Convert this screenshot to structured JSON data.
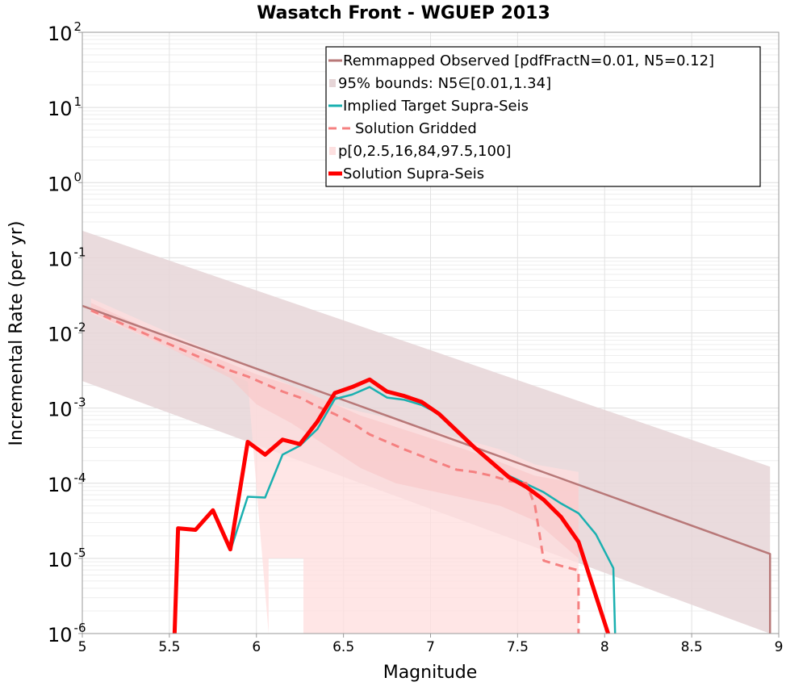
{
  "chart_data": {
    "type": "line",
    "title": "Wasatch Front - WGUEP 2013",
    "xlabel": "Magnitude",
    "ylabel": "Incremental Rate (per yr)",
    "xlim": [
      5,
      9
    ],
    "ylim_log10": [
      -6,
      2
    ],
    "y_scale": "log",
    "x_ticks": [
      5,
      5.5,
      6,
      6.5,
      7,
      7.5,
      8,
      8.5,
      9
    ],
    "x_tick_labels": [
      "5",
      "5.5",
      "6",
      "6.5",
      "7",
      "7.5",
      "8",
      "8.5",
      "9"
    ],
    "y_ticks": [
      {
        "base": "10",
        "exp": "-6",
        "log": -6
      },
      {
        "base": "10",
        "exp": "-5",
        "log": -5
      },
      {
        "base": "10",
        "exp": "-4",
        "log": -4
      },
      {
        "base": "10",
        "exp": "-3",
        "log": -3
      },
      {
        "base": "10",
        "exp": "-2",
        "log": -2
      },
      {
        "base": "10",
        "exp": "-1",
        "log": -1
      },
      {
        "base": "10",
        "exp": "0",
        "log": 0
      },
      {
        "base": "10",
        "exp": "1",
        "log": 1
      },
      {
        "base": "10",
        "exp": "2",
        "log": 2
      }
    ],
    "grid": true,
    "legend_position": "top-right",
    "legend": [
      {
        "label": "Remmapped Observed [pdfFractN=0.01, N5=0.12]",
        "color": "#b87878",
        "style": "line"
      },
      {
        "label": "95% bounds: N5∈[0.01,1.34]",
        "color": "#e6d5d7",
        "style": "patch"
      },
      {
        "label": "Implied Target Supra-Seis",
        "color": "#1ab0b0",
        "style": "line"
      },
      {
        "label": "Solution Gridded",
        "color": "#f58080",
        "style": "dashed"
      },
      {
        "label": "p[0,2.5,16,84,97.5,100]",
        "color": "#fde0e0",
        "style": "patch"
      },
      {
        "label": "Solution Supra-Seis",
        "color": "#ff0000",
        "style": "thick"
      }
    ],
    "series": [
      {
        "name": "Remmapped Observed [pdfFractN=0.01, N5=0.12]",
        "color": "#b87878",
        "x": [
          5.0,
          8.95,
          8.95
        ],
        "y_log10": [
          -1.64,
          -4.94,
          -6.0
        ]
      },
      {
        "name": "Implied Target Supra-Seis",
        "color": "#1ab0b0",
        "x": [
          5.85,
          5.95,
          6.05,
          6.15,
          6.25,
          6.35,
          6.45,
          6.55,
          6.65,
          6.75,
          6.85,
          6.95,
          7.05,
          7.15,
          7.25,
          7.35,
          7.45,
          7.55,
          7.65,
          7.75,
          7.85,
          7.95,
          8.05,
          8.06
        ],
        "y_log10": [
          -4.9,
          -4.18,
          -4.19,
          -3.62,
          -3.5,
          -3.28,
          -2.88,
          -2.82,
          -2.72,
          -2.86,
          -2.89,
          -2.96,
          -3.08,
          -3.3,
          -3.52,
          -3.72,
          -3.9,
          -4.01,
          -4.12,
          -4.27,
          -4.4,
          -4.68,
          -5.13,
          -6.0
        ]
      },
      {
        "name": "Solution Gridded",
        "color": "#f58080",
        "x": [
          5.05,
          5.15,
          5.25,
          5.35,
          5.45,
          5.55,
          5.65,
          5.75,
          5.85,
          5.95,
          6.05,
          6.15,
          6.25,
          6.35,
          6.45,
          6.55,
          6.65,
          6.75,
          6.85,
          6.95,
          7.05,
          7.15,
          7.25,
          7.35,
          7.45,
          7.55,
          7.6,
          7.65,
          7.75,
          7.85,
          7.85
        ],
        "y_log10": [
          -1.7,
          -1.8,
          -1.9,
          -2.0,
          -2.1,
          -2.2,
          -2.3,
          -2.4,
          -2.5,
          -2.58,
          -2.68,
          -2.78,
          -2.86,
          -2.98,
          -3.08,
          -3.2,
          -3.35,
          -3.45,
          -3.55,
          -3.64,
          -3.73,
          -3.82,
          -3.85,
          -3.9,
          -3.97,
          -4.0,
          -4.3,
          -5.03,
          -5.1,
          -5.16,
          -6.0
        ]
      },
      {
        "name": "Solution Supra-Seis",
        "color": "#ff0000",
        "x": [
          5.53,
          5.55,
          5.65,
          5.75,
          5.85,
          5.95,
          6.05,
          6.15,
          6.25,
          6.35,
          6.45,
          6.55,
          6.65,
          6.75,
          6.85,
          6.95,
          7.05,
          7.15,
          7.25,
          7.35,
          7.45,
          7.55,
          7.65,
          7.75,
          7.85,
          7.95,
          8.02
        ],
        "y_log10": [
          -6.0,
          -4.6,
          -4.62,
          -4.36,
          -4.88,
          -3.45,
          -3.62,
          -3.42,
          -3.48,
          -3.18,
          -2.8,
          -2.72,
          -2.62,
          -2.78,
          -2.84,
          -2.92,
          -3.08,
          -3.3,
          -3.52,
          -3.72,
          -3.92,
          -4.05,
          -4.22,
          -4.45,
          -4.78,
          -5.5,
          -6.0
        ]
      }
    ],
    "bounds_band": {
      "name": "95% bounds: N5∈[0.01,1.34]",
      "x": [
        5.0,
        8.95
      ],
      "upper_log10": [
        -0.64,
        -3.78
      ],
      "lower_log10": [
        -2.64,
        -6.0
      ]
    },
    "percentile_bands": {
      "name": "p[0,2.5,16,84,97.5,100]",
      "outer": {
        "x": [
          5.05,
          5.5,
          5.95,
          6.05,
          6.15,
          6.25,
          6.35,
          6.45,
          6.6,
          6.8,
          7.0,
          7.2,
          7.4,
          7.6,
          7.85,
          7.85,
          7.85,
          6.27,
          6.27,
          6.07,
          6.07,
          5.95,
          5.5,
          5.05
        ],
        "y_log10": [
          -1.54,
          -2.0,
          -2.45,
          -2.55,
          -2.65,
          -2.75,
          -2.85,
          -2.95,
          -3.05,
          -3.15,
          -3.3,
          -3.42,
          -3.55,
          -3.75,
          -3.85,
          -4.0,
          -6.0,
          -6.0,
          -5.0,
          -5.0,
          -6.0,
          -2.65,
          -2.2,
          -1.74
        ]
      },
      "inner": {
        "x": [
          5.05,
          5.5,
          6.0,
          6.2,
          6.4,
          6.6,
          6.8,
          7.0,
          7.2,
          7.4,
          7.6,
          7.85,
          7.85,
          7.6,
          7.4,
          7.2,
          7.0,
          6.8,
          6.6,
          6.4,
          6.2,
          6.0,
          5.85,
          5.5,
          5.05
        ],
        "y_log10": [
          -1.6,
          -2.08,
          -2.55,
          -2.7,
          -2.9,
          -3.1,
          -3.25,
          -3.4,
          -3.55,
          -3.72,
          -3.9,
          -4.0,
          -5.0,
          -4.5,
          -4.3,
          -4.2,
          -4.1,
          -4.0,
          -3.8,
          -3.5,
          -3.2,
          -2.95,
          -2.6,
          -2.2,
          -1.72
        ]
      }
    }
  }
}
